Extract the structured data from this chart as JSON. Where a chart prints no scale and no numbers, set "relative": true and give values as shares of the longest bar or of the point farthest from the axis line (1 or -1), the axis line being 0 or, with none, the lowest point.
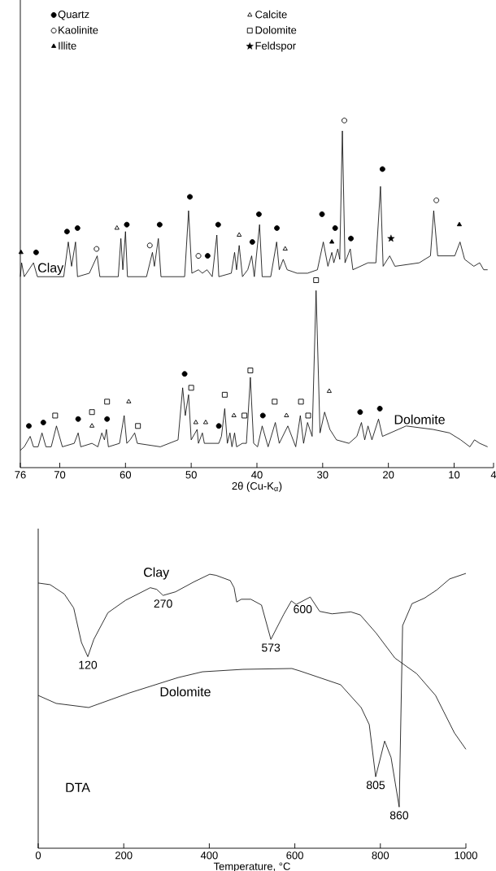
{
  "chart_data": [
    {
      "type": "line",
      "relative": true,
      "xlabel": "2θ (Cu-K$_{α}$)",
      "xlim": [
        76,
        4
      ],
      "xticks": [
        76,
        70,
        60,
        50,
        40,
        30,
        20,
        10,
        4
      ],
      "legend": "top left",
      "series": [
        {
          "name": "Clay",
          "type": "line",
          "color": "#000000",
          "x": [
            76.0,
            75.8,
            75.4,
            74.0,
            73.4,
            69.4,
            68.7,
            68.2,
            67.6,
            67.3,
            65.5,
            64.3,
            63.9,
            61.1,
            60.7,
            60.4,
            60.0,
            59.7,
            56.8,
            55.9,
            55.6,
            55.0,
            54.6,
            51.0,
            50.4,
            49.9,
            48.9,
            48.3,
            47.6,
            46.8,
            46.1,
            45.8,
            43.9,
            43.4,
            43.1,
            42.7,
            42.2,
            41.4,
            40.8,
            40.4,
            39.6,
            39.2,
            37.9,
            37.0,
            36.6,
            36.0,
            35.4,
            33.9,
            32.3,
            30.8,
            29.9,
            29.2,
            28.6,
            28.3,
            27.7,
            27.4,
            27.0,
            26.6,
            25.8,
            25.4,
            23.1,
            21.9,
            21.2,
            20.8,
            19.8,
            19.0,
            15.3,
            13.6,
            13.1,
            12.5,
            10.7,
            9.9,
            9.1,
            8.4,
            7.0,
            6.1,
            5.5,
            4.9
          ],
          "values": [
            0.55,
            0.59,
            0.55,
            0.59,
            0.55,
            0.55,
            0.65,
            0.58,
            0.65,
            0.55,
            0.56,
            0.61,
            0.55,
            0.55,
            0.66,
            0.57,
            0.68,
            0.55,
            0.55,
            0.62,
            0.58,
            0.66,
            0.55,
            0.55,
            0.74,
            0.56,
            0.57,
            0.56,
            0.57,
            0.55,
            0.67,
            0.55,
            0.56,
            0.62,
            0.57,
            0.64,
            0.55,
            0.57,
            0.61,
            0.55,
            0.7,
            0.55,
            0.55,
            0.65,
            0.57,
            0.6,
            0.57,
            0.56,
            0.56,
            0.57,
            0.65,
            0.58,
            0.62,
            0.59,
            0.63,
            0.6,
            0.97,
            0.59,
            0.63,
            0.57,
            0.59,
            0.59,
            0.81,
            0.58,
            0.61,
            0.58,
            0.59,
            0.61,
            0.74,
            0.61,
            0.61,
            0.61,
            0.65,
            0.6,
            0.58,
            0.59,
            0.57,
            0.57
          ]
        },
        {
          "name": "Dolomite",
          "type": "line",
          "color": "#000000",
          "x": [
            76.0,
            75.4,
            74.5,
            74.0,
            73.3,
            72.7,
            72.1,
            71.3,
            70.5,
            69.6,
            67.8,
            67.2,
            66.8,
            65.1,
            64.2,
            63.6,
            63.2,
            62.9,
            62.6,
            60.9,
            60.2,
            59.8,
            59.3,
            58.6,
            58.2,
            54.7,
            52.0,
            51.3,
            50.9,
            50.4,
            50.0,
            49.1,
            48.9,
            48.3,
            48.0,
            45.8,
            45.4,
            44.9,
            44.5,
            44.1,
            43.8,
            43.4,
            43.1,
            42.2,
            41.6,
            41.0,
            40.5,
            39.9,
            39.2,
            38.3,
            37.2,
            36.6,
            35.3,
            34.1,
            33.4,
            32.9,
            32.3,
            31.6,
            31.0,
            30.4,
            29.7,
            28.9,
            27.9,
            26.0,
            24.8,
            24.1,
            23.6,
            23.1,
            22.5,
            21.5,
            20.9,
            17.3,
            13.2,
            10.7,
            9.0,
            7.6,
            6.9,
            6.1,
            4.9
          ],
          "values": [
            0.05,
            0.06,
            0.09,
            0.06,
            0.06,
            0.1,
            0.06,
            0.06,
            0.12,
            0.06,
            0.07,
            0.1,
            0.06,
            0.07,
            0.06,
            0.1,
            0.08,
            0.11,
            0.06,
            0.07,
            0.15,
            0.07,
            0.08,
            0.1,
            0.07,
            0.06,
            0.08,
            0.23,
            0.15,
            0.21,
            0.08,
            0.11,
            0.07,
            0.1,
            0.07,
            0.07,
            0.09,
            0.17,
            0.07,
            0.1,
            0.06,
            0.1,
            0.06,
            0.07,
            0.07,
            0.26,
            0.07,
            0.06,
            0.12,
            0.06,
            0.13,
            0.07,
            0.12,
            0.06,
            0.15,
            0.07,
            0.13,
            0.09,
            0.51,
            0.1,
            0.16,
            0.11,
            0.08,
            0.07,
            0.09,
            0.13,
            0.08,
            0.12,
            0.08,
            0.14,
            0.09,
            0.12,
            0.11,
            0.1,
            0.08,
            0.06,
            0.08,
            0.07,
            0.06
          ]
        },
        {
          "name": "Quartz",
          "type": "scatter",
          "marker": "circle",
          "color": "#000000",
          "x": [
            74.7,
            73.6,
            72.5,
            68.9,
            67.3,
            67.2,
            62.8,
            59.8,
            54.8,
            51.0,
            50.2,
            47.5,
            45.9,
            45.8,
            40.7,
            39.7,
            39.1,
            36.96,
            30.1,
            28.1,
            25.7,
            24.3,
            21.3,
            20.9
          ],
          "values": [
            0.12,
            0.62,
            0.13,
            0.68,
            0.69,
            0.14,
            0.14,
            0.7,
            0.7,
            0.27,
            0.78,
            0.61,
            0.7,
            0.12,
            0.65,
            0.73,
            0.15,
            0.69,
            0.73,
            0.69,
            0.66,
            0.16,
            0.17,
            0.86
          ]
        },
        {
          "name": "Kaolinite",
          "type": "scatter",
          "marker": "circle",
          "color": "#ffffff",
          "x": [
            64.4,
            56.3,
            48.9,
            26.7,
            12.7
          ],
          "values": [
            0.63,
            0.64,
            0.61,
            1.0,
            0.77
          ]
        },
        {
          "name": "Illite",
          "type": "scatter",
          "marker": "triangle",
          "color": "#000000",
          "x": [
            75.9,
            28.6,
            9.2
          ],
          "values": [
            0.62,
            0.65,
            0.7
          ]
        },
        {
          "name": "Calcite",
          "type": "scatter",
          "marker": "triangle",
          "color": "#ffffff",
          "x": [
            65.1,
            61.3,
            59.5,
            49.3,
            47.8,
            43.5,
            42.7,
            35.7,
            35.5,
            29.0
          ],
          "values": [
            0.12,
            0.69,
            0.19,
            0.13,
            0.13,
            0.15,
            0.67,
            0.63,
            0.15,
            0.22
          ]
        },
        {
          "name": "Dolomite",
          "type": "scatter",
          "marker": "square",
          "color": "#ffffff",
          "x": [
            70.7,
            65.1,
            62.8,
            58.1,
            50.0,
            44.9,
            41.9,
            41.0,
            37.3,
            33.3,
            32.2,
            31.0
          ],
          "values": [
            0.15,
            0.16,
            0.19,
            0.12,
            0.23,
            0.21,
            0.15,
            0.28,
            0.19,
            0.19,
            0.15,
            0.54
          ]
        },
        {
          "name": "Feldspor",
          "type": "scatter",
          "marker": "star",
          "color": "#000000",
          "x": [
            19.6
          ],
          "values": [
            0.66
          ]
        }
      ]
    },
    {
      "type": "line",
      "relative": true,
      "xlabel": "Temperature, °C",
      "xlim": [
        0,
        1000
      ],
      "xticks": [
        0,
        200,
        400,
        600,
        800,
        1000
      ],
      "annotations": [
        {
          "text": "120",
          "x": 116,
          "y": 0.697
        },
        {
          "text": "270",
          "x": 292,
          "y": 0.92
        },
        {
          "text": "573",
          "x": 544,
          "y": 0.76
        },
        {
          "text": "600",
          "x": 592,
          "y": 0.9
        },
        {
          "text": "805",
          "x": 789,
          "y": 0.26
        },
        {
          "text": "860",
          "x": 844,
          "y": 0.15
        },
        "DTA"
      ],
      "series": [
        {
          "name": "Clay",
          "color": "#000000",
          "x": [
            0,
            28,
            61,
            83,
            101,
            116,
            130,
            163,
            204,
            262,
            277,
            292,
            321,
            365,
            401,
            416,
            449,
            458,
            464,
            475,
            497,
            522,
            544,
            574,
            592,
            603,
            636,
            658,
            687,
            731,
            753,
            790,
            834,
            885,
            929,
            973,
            1000
          ],
          "values": [
            0.965,
            0.959,
            0.925,
            0.874,
            0.749,
            0.697,
            0.76,
            0.857,
            0.902,
            0.948,
            0.942,
            0.92,
            0.933,
            0.97,
            0.997,
            0.993,
            0.974,
            0.948,
            0.896,
            0.906,
            0.906,
            0.885,
            0.76,
            0.851,
            0.9,
            0.887,
            0.914,
            0.862,
            0.853,
            0.86,
            0.849,
            0.783,
            0.692,
            0.635,
            0.556,
            0.42,
            0.36
          ]
        },
        {
          "name": "Dolomite",
          "color": "#000000",
          "x": [
            0,
            42,
            118,
            213,
            327,
            384,
            479,
            593,
            612,
            707,
            755,
            774,
            789,
            810,
            825,
            844,
            852,
            874,
            903,
            932,
            962,
            1000
          ],
          "values": [
            0.556,
            0.527,
            0.512,
            0.565,
            0.621,
            0.642,
            0.651,
            0.654,
            0.645,
            0.595,
            0.512,
            0.45,
            0.26,
            0.39,
            0.33,
            0.15,
            0.81,
            0.89,
            0.91,
            0.94,
            0.98,
            1.0
          ]
        }
      ]
    }
  ]
}
